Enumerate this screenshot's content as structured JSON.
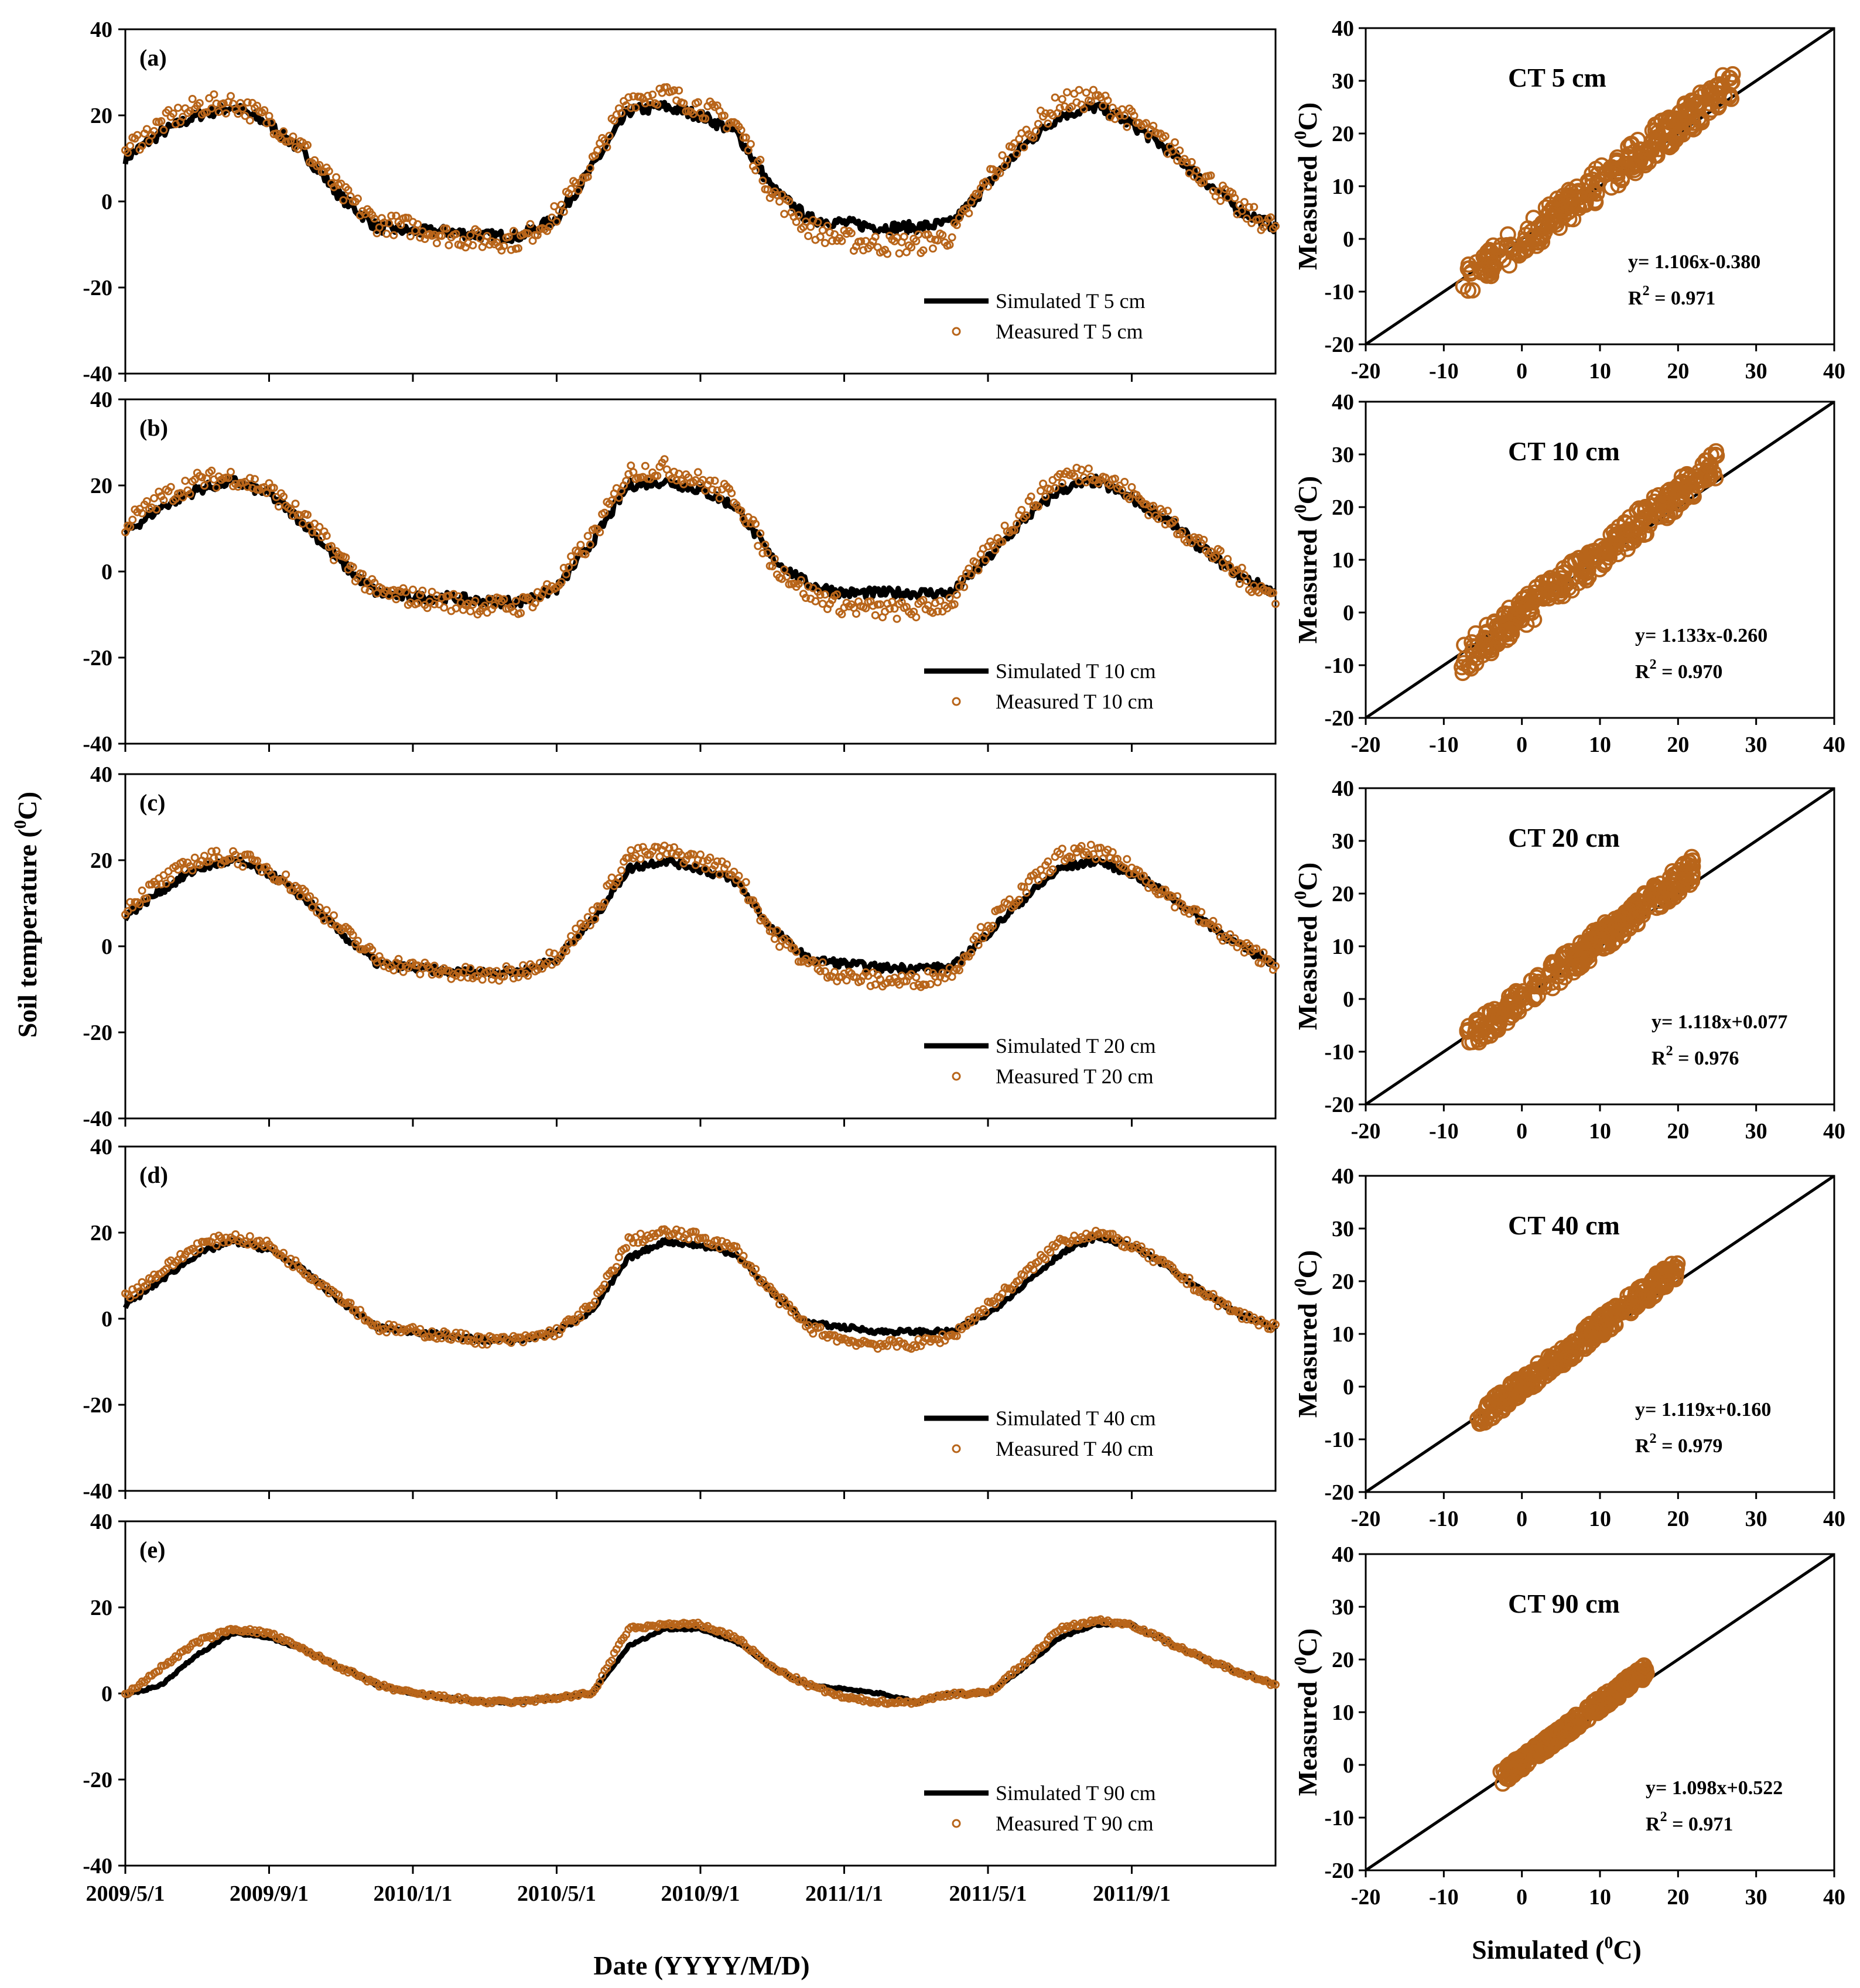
{
  "figure": {
    "ts_ylabel": "Soil temperature (",
    "ts_ylabel_sup": "0",
    "ts_ylabel_end": "C)",
    "ts_xlabel": "Date (YYYY/M/D)",
    "sc_ylabel": "Measured (",
    "sc_ylabel_sup": "0",
    "sc_ylabel_end": "C)",
    "sc_xlabel": "Simulated (",
    "sc_xlabel_sup": "0",
    "sc_xlabel_end": "C)"
  },
  "colors": {
    "simulated": "#000000",
    "measured": "#b8651a"
  },
  "chart_data": [
    {
      "type": "line",
      "panel": "(a)",
      "ylim": [
        -40,
        40
      ],
      "yticks": [
        "40",
        "20",
        "0",
        "-20",
        "-40"
      ],
      "xlabel": "Date (YYYY/M/D)",
      "ylabel": "Soil temperature (0C)",
      "x_ticks": [
        "2009/5/1",
        "2009/9/1",
        "2010/1/1",
        "2010/5/1",
        "2010/9/1",
        "2011/1/1",
        "2011/5/1",
        "2011/9/1"
      ],
      "legend": [
        "Simulated T 5 cm",
        "Measured T 5 cm"
      ],
      "legend_position": "bottom-right",
      "series": [
        {
          "name": "Simulated T 5 cm",
          "x_month": [
            0,
            1,
            2,
            3,
            4,
            5,
            6,
            7,
            8,
            9,
            10,
            11,
            12,
            13,
            14,
            15,
            16,
            17,
            18,
            19,
            20,
            21,
            22,
            23,
            24,
            25,
            26,
            27,
            28,
            29,
            30,
            31,
            32
          ],
          "values": [
            10,
            16,
            20,
            22,
            18,
            11,
            1,
            -6,
            -7,
            -7,
            -8,
            -8,
            -4,
            8,
            21,
            22,
            20,
            16,
            3,
            -4,
            -5,
            -6,
            -6,
            -5,
            4,
            13,
            20,
            22,
            18,
            12,
            5,
            -2,
            -6
          ]
        },
        {
          "name": "Measured T 5 cm",
          "x_month": [
            0,
            1,
            2,
            3,
            4,
            5,
            6,
            7,
            8,
            9,
            10,
            11,
            12,
            13,
            14,
            15,
            16,
            17,
            18,
            19,
            20,
            21,
            22,
            23,
            24,
            25,
            26,
            27,
            28,
            29,
            30,
            31,
            32
          ],
          "values": [
            12,
            18,
            22,
            23,
            19,
            12,
            2,
            -5,
            -6,
            -8,
            -9,
            -9,
            -3,
            9,
            24,
            25,
            22,
            18,
            2,
            -6,
            -9,
            -10,
            -10,
            -8,
            5,
            15,
            23,
            24,
            19,
            13,
            6,
            -2,
            -6
          ]
        }
      ]
    },
    {
      "type": "line",
      "panel": "(b)",
      "ylim": [
        -40,
        40
      ],
      "yticks": [
        "40",
        "20",
        "0",
        "-20",
        "-40"
      ],
      "legend": [
        "Simulated T 10 cm",
        "Measured T 10 cm"
      ],
      "legend_position": "bottom-right",
      "series": [
        {
          "name": "Simulated T 10 cm",
          "x_month": [
            0,
            1,
            2,
            3,
            4,
            5,
            6,
            7,
            8,
            9,
            10,
            11,
            12,
            13,
            14,
            15,
            16,
            17,
            18,
            19,
            20,
            21,
            22,
            23,
            24,
            25,
            26,
            27,
            28,
            29,
            30,
            31,
            32
          ],
          "values": [
            9,
            15,
            19,
            21,
            18,
            11,
            2,
            -5,
            -6,
            -6,
            -7,
            -7,
            -4,
            7,
            20,
            21,
            19,
            15,
            3,
            -3,
            -5,
            -5,
            -5,
            -5,
            3,
            12,
            19,
            21,
            17,
            12,
            5,
            -1,
            -5
          ]
        },
        {
          "name": "Measured T 10 cm",
          "x_month": [
            0,
            1,
            2,
            3,
            4,
            5,
            6,
            7,
            8,
            9,
            10,
            11,
            12,
            13,
            14,
            15,
            16,
            17,
            18,
            19,
            20,
            21,
            22,
            23,
            24,
            25,
            26,
            27,
            28,
            29,
            30,
            31,
            32
          ],
          "values": [
            11,
            17,
            21,
            22,
            19,
            12,
            3,
            -5,
            -6,
            -7,
            -8,
            -8,
            -3,
            8,
            23,
            24,
            21,
            17,
            2,
            -5,
            -8,
            -9,
            -9,
            -7,
            5,
            14,
            22,
            23,
            18,
            12,
            6,
            -1,
            -6
          ]
        }
      ]
    },
    {
      "type": "line",
      "panel": "(c)",
      "ylim": [
        -40,
        40
      ],
      "yticks": [
        "40",
        "20",
        "0",
        "-20",
        "-40"
      ],
      "legend": [
        "Simulated T 20 cm",
        "Measured T 20 cm"
      ],
      "legend_position": "bottom-right",
      "series": [
        {
          "name": "Simulated T 20 cm",
          "x_month": [
            0,
            1,
            2,
            3,
            4,
            5,
            6,
            7,
            8,
            9,
            10,
            11,
            12,
            13,
            14,
            15,
            16,
            17,
            18,
            19,
            20,
            21,
            22,
            23,
            24,
            25,
            26,
            27,
            28,
            29,
            30,
            31,
            32
          ],
          "values": [
            7,
            13,
            18,
            20,
            17,
            11,
            3,
            -4,
            -5,
            -6,
            -6,
            -6,
            -3,
            6,
            18,
            20,
            18,
            15,
            4,
            -3,
            -4,
            -5,
            -5,
            -5,
            3,
            11,
            18,
            20,
            17,
            12,
            6,
            0,
            -4
          ]
        },
        {
          "name": "Measured T 20 cm",
          "x_month": [
            0,
            1,
            2,
            3,
            4,
            5,
            6,
            7,
            8,
            9,
            10,
            11,
            12,
            13,
            14,
            15,
            16,
            17,
            18,
            19,
            20,
            21,
            22,
            23,
            24,
            25,
            26,
            27,
            28,
            29,
            30,
            31,
            32
          ],
          "values": [
            9,
            15,
            20,
            21,
            18,
            12,
            4,
            -3,
            -5,
            -6,
            -7,
            -6,
            -2,
            7,
            21,
            22,
            20,
            17,
            3,
            -4,
            -7,
            -8,
            -8,
            -6,
            5,
            13,
            21,
            22,
            18,
            12,
            6,
            0,
            -4
          ]
        }
      ]
    },
    {
      "type": "line",
      "panel": "(d)",
      "ylim": [
        -40,
        40
      ],
      "yticks": [
        "40",
        "20",
        "0",
        "-20",
        "-40"
      ],
      "legend": [
        "Simulated T 40 cm",
        "Measured T 40 cm"
      ],
      "legend_position": "bottom-right",
      "series": [
        {
          "name": "Simulated T 40 cm",
          "x_month": [
            0,
            1,
            2,
            3,
            4,
            5,
            6,
            7,
            8,
            9,
            10,
            11,
            12,
            13,
            14,
            15,
            16,
            17,
            18,
            19,
            20,
            21,
            22,
            23,
            24,
            25,
            26,
            27,
            28,
            29,
            30,
            31,
            32
          ],
          "values": [
            3,
            9,
            15,
            18,
            16,
            11,
            4,
            -2,
            -3,
            -4,
            -5,
            -5,
            -3,
            2,
            14,
            18,
            17,
            15,
            6,
            -1,
            -2,
            -3,
            -3,
            -3,
            1,
            8,
            15,
            19,
            17,
            12,
            6,
            1,
            -2
          ]
        },
        {
          "name": "Measured T 40 cm",
          "x_month": [
            0,
            1,
            2,
            3,
            4,
            5,
            6,
            7,
            8,
            9,
            10,
            11,
            12,
            13,
            14,
            15,
            16,
            17,
            18,
            19,
            20,
            21,
            22,
            23,
            24,
            25,
            26,
            27,
            28,
            29,
            30,
            31,
            32
          ],
          "values": [
            5,
            11,
            17,
            19,
            17,
            11,
            5,
            -2,
            -3,
            -4,
            -5,
            -5,
            -3,
            3,
            18,
            20,
            19,
            16,
            6,
            -2,
            -5,
            -6,
            -6,
            -4,
            3,
            10,
            18,
            20,
            17,
            12,
            6,
            1,
            -2
          ]
        }
      ]
    },
    {
      "type": "line",
      "panel": "(e)",
      "ylim": [
        -40,
        40
      ],
      "yticks": [
        "40",
        "20",
        "0",
        "-20",
        "-40"
      ],
      "legend": [
        "Simulated T 90 cm",
        "Measured T 90 cm"
      ],
      "legend_position": "bottom-right",
      "series": [
        {
          "name": "Simulated T 90 cm",
          "x_month": [
            0,
            1,
            2,
            3,
            4,
            5,
            6,
            7,
            8,
            9,
            10,
            11,
            12,
            13,
            14,
            15,
            16,
            17,
            18,
            19,
            20,
            21,
            22,
            23,
            24,
            25,
            26,
            27,
            28,
            29,
            30,
            31,
            32
          ],
          "values": [
            -0.5,
            2,
            9,
            14,
            13,
            10,
            6,
            2,
            0,
            -1,
            -2,
            -2,
            -1,
            0,
            11,
            15,
            15,
            12,
            6,
            2,
            1,
            0,
            -2,
            0,
            0,
            6,
            13,
            16,
            16,
            12,
            8,
            5,
            2
          ]
        },
        {
          "name": "Measured T 90 cm",
          "x_month": [
            0,
            1,
            2,
            3,
            4,
            5,
            6,
            7,
            8,
            9,
            10,
            11,
            12,
            13,
            14,
            15,
            16,
            17,
            18,
            19,
            20,
            21,
            22,
            23,
            24,
            25,
            26,
            27,
            28,
            29,
            30,
            31,
            32
          ],
          "values": [
            -0.5,
            6,
            12,
            15,
            14,
            10,
            6,
            2,
            0,
            -1,
            -2,
            -2,
            -1,
            0,
            15,
            16,
            16,
            13,
            6,
            2,
            -1,
            -2,
            -2,
            0,
            0,
            7,
            15,
            17,
            16,
            12,
            8,
            5,
            2
          ]
        }
      ]
    },
    {
      "type": "scatter",
      "title": "CT  5 cm",
      "xlim": [
        -20,
        40
      ],
      "ylim": [
        -20,
        40
      ],
      "xticks": [
        "-20",
        "-10",
        "0",
        "10",
        "20",
        "30",
        "40"
      ],
      "yticks": [
        "40",
        "30",
        "20",
        "10",
        "0",
        "-10",
        "-20"
      ],
      "equation": "y= 1.106x-0.380",
      "r2_label": "R",
      "r2_sup": "2",
      "r2_value": " = 0.971",
      "slope": 1.106,
      "intercept": -0.38,
      "sim_range": [
        -8,
        27
      ],
      "scatter_spread": 3.2,
      "ylabel": "Measured (0C)"
    },
    {
      "type": "scatter",
      "title": "CT  10 cm",
      "xlim": [
        -20,
        40
      ],
      "ylim": [
        -20,
        40
      ],
      "xticks": [
        "-20",
        "-10",
        "0",
        "10",
        "20",
        "30",
        "40"
      ],
      "yticks": [
        "40",
        "30",
        "20",
        "10",
        "0",
        "-10",
        "-20"
      ],
      "equation": "y= 1.133x-0.260",
      "r2_label": "R",
      "r2_sup": "2",
      "r2_value": " = 0.970",
      "slope": 1.133,
      "intercept": -0.26,
      "sim_range": [
        -8,
        25
      ],
      "scatter_spread": 3.0,
      "ylabel": "Measured (0C)"
    },
    {
      "type": "scatter",
      "title": "CT  20 cm",
      "xlim": [
        -20,
        40
      ],
      "ylim": [
        -20,
        40
      ],
      "xticks": [
        "-20",
        "-10",
        "0",
        "10",
        "20",
        "30",
        "40"
      ],
      "yticks": [
        "40",
        "30",
        "20",
        "10",
        "0",
        "-10",
        "-20"
      ],
      "equation": "y= 1.118x+0.077",
      "r2_label": "R",
      "r2_sup": "2",
      "r2_value": " = 0.976",
      "slope": 1.118,
      "intercept": 0.077,
      "sim_range": [
        -7,
        22
      ],
      "scatter_spread": 2.6,
      "ylabel": "Measured (0C)"
    },
    {
      "type": "scatter",
      "title": "CT  40 cm",
      "xlim": [
        -20,
        40
      ],
      "ylim": [
        -20,
        40
      ],
      "xticks": [
        "-20",
        "-10",
        "0",
        "10",
        "20",
        "30",
        "40"
      ],
      "yticks": [
        "40",
        "30",
        "20",
        "10",
        "0",
        "-10",
        "-20"
      ],
      "equation": "y= 1.119x+0.160",
      "r2_label": "R",
      "r2_sup": "2",
      "r2_value": " = 0.979",
      "slope": 1.119,
      "intercept": 0.16,
      "sim_range": [
        -6,
        20
      ],
      "scatter_spread": 2.0,
      "ylabel": "Measured (0C)"
    },
    {
      "type": "scatter",
      "title": "CT  90 cm",
      "xlim": [
        -20,
        40
      ],
      "ylim": [
        -20,
        40
      ],
      "xticks": [
        "-20",
        "-10",
        "0",
        "10",
        "20",
        "30",
        "40"
      ],
      "yticks": [
        "40",
        "30",
        "20",
        "10",
        "0",
        "-10",
        "-20"
      ],
      "equation": "y= 1.098x+0.522",
      "r2_label": "R",
      "r2_sup": "2",
      "r2_value": " = 0.971",
      "slope": 1.098,
      "intercept": 0.522,
      "sim_range": [
        -3,
        16
      ],
      "scatter_spread": 1.4,
      "ylabel": "Measured (0C)",
      "xlabel": "Simulated (0C)"
    }
  ]
}
